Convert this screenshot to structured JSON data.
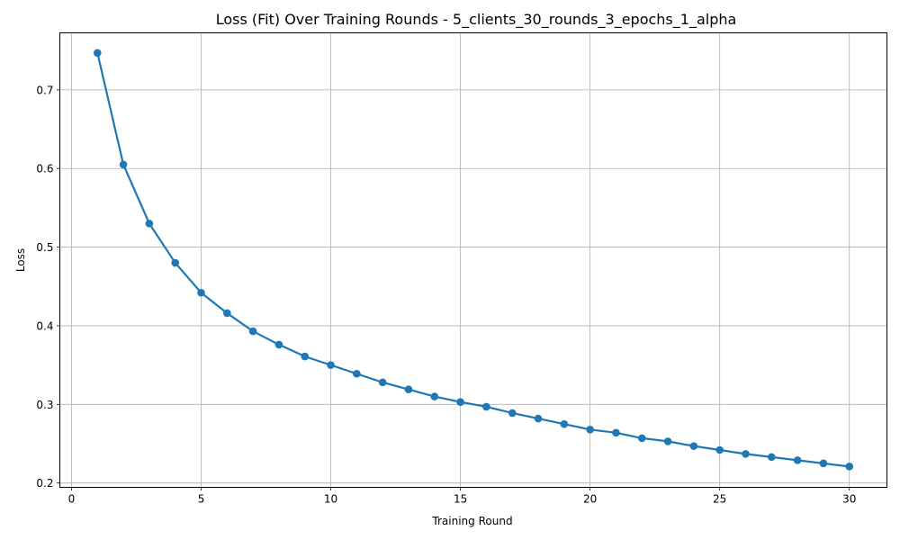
{
  "chart_data": {
    "type": "line",
    "title": "Loss (Fit) Over Training Rounds  - 5_clients_30_rounds_3_epochs_1_alpha",
    "xlabel": "Training Round",
    "ylabel": "Loss",
    "xlim": [
      -0.45,
      31.45
    ],
    "ylim": [
      0.1945,
      0.7725
    ],
    "xticks": [
      0,
      5,
      10,
      15,
      20,
      25,
      30
    ],
    "yticks": [
      0.2,
      0.3,
      0.4,
      0.5,
      0.6,
      0.7
    ],
    "xtick_labels": [
      "0",
      "5",
      "10",
      "15",
      "20",
      "25",
      "30"
    ],
    "ytick_labels": [
      "0.2",
      "0.3",
      "0.4",
      "0.5",
      "0.6",
      "0.7"
    ],
    "grid": true,
    "color": "#1f77b4",
    "series": [
      {
        "x": [
          1,
          2,
          3,
          4,
          5,
          6,
          7,
          8,
          9,
          10,
          11,
          12,
          13,
          14,
          15,
          16,
          17,
          18,
          19,
          20,
          21,
          22,
          23,
          24,
          25,
          26,
          27,
          28,
          29,
          30
        ],
        "values": [
          0.747,
          0.605,
          0.53,
          0.48,
          0.442,
          0.416,
          0.393,
          0.376,
          0.361,
          0.35,
          0.339,
          0.328,
          0.319,
          0.31,
          0.303,
          0.297,
          0.289,
          0.282,
          0.275,
          0.268,
          0.264,
          0.257,
          0.253,
          0.247,
          0.242,
          0.237,
          0.233,
          0.229,
          0.225,
          0.221
        ]
      }
    ]
  }
}
